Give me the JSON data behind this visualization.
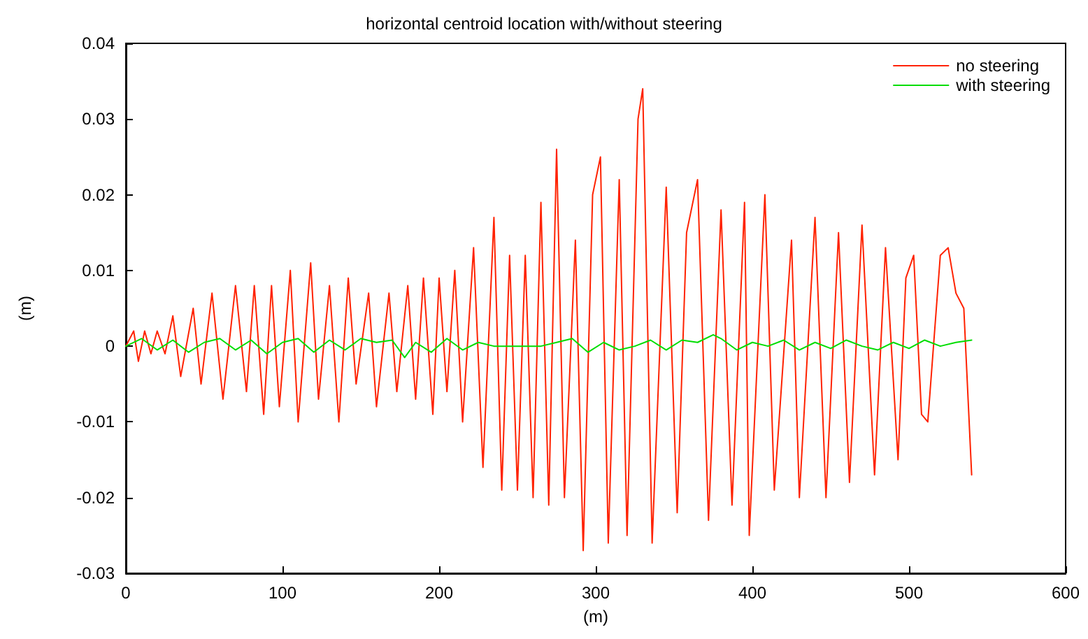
{
  "chart_data": {
    "type": "line",
    "title": "horizontal centroid location with/without steering",
    "xlabel": "(m)",
    "ylabel": "(m)",
    "xlim": [
      0,
      600
    ],
    "xticks": [
      0,
      100,
      200,
      300,
      400,
      500,
      600
    ],
    "ylim": [
      -0.03,
      0.04
    ],
    "yticks": [
      -0.03,
      -0.02,
      -0.01,
      0,
      0.01,
      0.02,
      0.03,
      0.04
    ],
    "grid": false,
    "legend": "top right",
    "marker": "none",
    "line_style": "solid",
    "series": [
      {
        "name": "no steering",
        "color": "#ff2200",
        "x": [
          0,
          5,
          8,
          12,
          16,
          20,
          25,
          30,
          35,
          43,
          48,
          55,
          62,
          70,
          77,
          82,
          88,
          93,
          98,
          105,
          110,
          118,
          123,
          130,
          136,
          142,
          147,
          155,
          160,
          168,
          173,
          180,
          185,
          190,
          196,
          200,
          205,
          210,
          215,
          222,
          228,
          235,
          240,
          245,
          250,
          255,
          260,
          265,
          270,
          275,
          280,
          287,
          292,
          298,
          303,
          308,
          315,
          320,
          327,
          330,
          336,
          345,
          352,
          358,
          365,
          372,
          380,
          387,
          395,
          398,
          408,
          414,
          425,
          430,
          440,
          447,
          455,
          462,
          470,
          478,
          485,
          493,
          498,
          503,
          508,
          512,
          520,
          525,
          530,
          535,
          540
        ],
        "values": [
          0,
          0.002,
          -0.002,
          0.002,
          -0.001,
          0.002,
          -0.001,
          0.004,
          -0.004,
          0.005,
          -0.005,
          0.007,
          -0.007,
          0.008,
          -0.006,
          0.008,
          -0.009,
          0.008,
          -0.008,
          0.01,
          -0.01,
          0.011,
          -0.007,
          0.008,
          -0.01,
          0.009,
          -0.005,
          0.007,
          -0.008,
          0.007,
          -0.006,
          0.008,
          -0.007,
          0.009,
          -0.009,
          0.009,
          -0.006,
          0.01,
          -0.01,
          0.013,
          -0.016,
          0.017,
          -0.019,
          0.012,
          -0.019,
          0.012,
          -0.02,
          0.019,
          -0.021,
          0.026,
          -0.02,
          0.014,
          -0.027,
          0.02,
          0.025,
          -0.026,
          0.022,
          -0.025,
          0.03,
          0.034,
          -0.026,
          0.021,
          -0.022,
          0.015,
          0.022,
          -0.023,
          0.018,
          -0.021,
          0.019,
          -0.025,
          0.02,
          -0.019,
          0.014,
          -0.02,
          0.017,
          -0.02,
          0.015,
          -0.018,
          0.016,
          -0.017,
          0.013,
          -0.015,
          0.009,
          0.012,
          -0.009,
          -0.01,
          0.012,
          0.013,
          0.007,
          0.005,
          -0.017
        ]
      },
      {
        "name": "with steering",
        "color": "#00dd00",
        "x": [
          0,
          10,
          20,
          30,
          40,
          50,
          60,
          70,
          80,
          90,
          100,
          110,
          120,
          130,
          140,
          150,
          160,
          170,
          178,
          185,
          195,
          205,
          215,
          225,
          235,
          245,
          255,
          265,
          275,
          285,
          295,
          305,
          315,
          325,
          335,
          345,
          355,
          365,
          375,
          380,
          390,
          400,
          410,
          420,
          430,
          440,
          450,
          460,
          470,
          480,
          490,
          500,
          510,
          520,
          530,
          540
        ],
        "values": [
          0,
          0.001,
          -0.0005,
          0.0008,
          -0.0008,
          0.0005,
          0.001,
          -0.0005,
          0.0008,
          -0.001,
          0.0005,
          0.001,
          -0.0008,
          0.0008,
          -0.0005,
          0.001,
          0.0005,
          0.0008,
          -0.0015,
          0.0005,
          -0.0008,
          0.001,
          -0.0005,
          0.0005,
          0,
          0,
          0,
          0,
          0.0005,
          0.001,
          -0.0008,
          0.0005,
          -0.0005,
          0,
          0.0008,
          -0.0005,
          0.0008,
          0.0005,
          0.0015,
          0.001,
          -0.0005,
          0.0005,
          0,
          0.0008,
          -0.0005,
          0.0005,
          -0.0003,
          0.0008,
          0,
          -0.0005,
          0.0005,
          -0.0003,
          0.0008,
          0,
          0.0005,
          0.0008
        ]
      }
    ]
  }
}
